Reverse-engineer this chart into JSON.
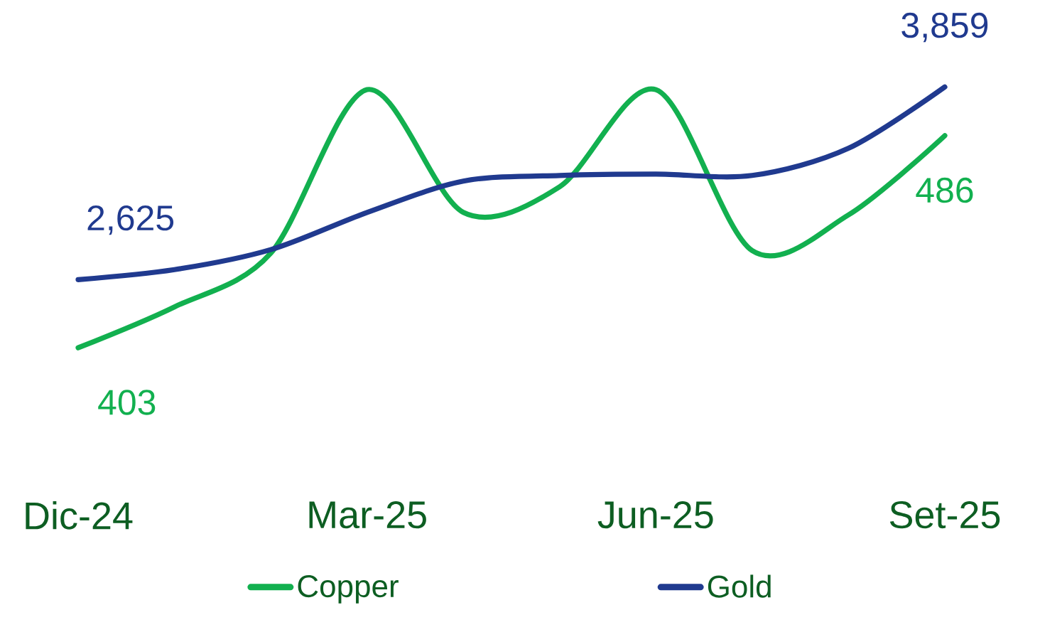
{
  "chart_data": {
    "type": "line",
    "categories": [
      "Dic-24",
      null,
      null,
      "Mar-25",
      null,
      null,
      "Jun-25",
      null,
      null,
      "Set-25"
    ],
    "series": [
      {
        "name": "Copper",
        "color": "#12b04f",
        "values": [
          403,
          419,
          440,
          504,
          456,
          466,
          504,
          441,
          455,
          486
        ],
        "value_labels": [
          "403",
          null,
          null,
          null,
          null,
          null,
          null,
          null,
          null,
          "486"
        ]
      },
      {
        "name": "Gold",
        "color": "#203a8f",
        "axis": "y2",
        "values": [
          2625,
          2689,
          2817,
          3055,
          3256,
          3292,
          3301,
          3292,
          3466,
          3859
        ],
        "value_labels": [
          "2,625",
          null,
          null,
          null,
          null,
          null,
          null,
          null,
          null,
          "3,859"
        ]
      }
    ],
    "tick_labels": "x",
    "legend": "bottom",
    "marker": "none",
    "line_style": "solid",
    "grid": false
  }
}
